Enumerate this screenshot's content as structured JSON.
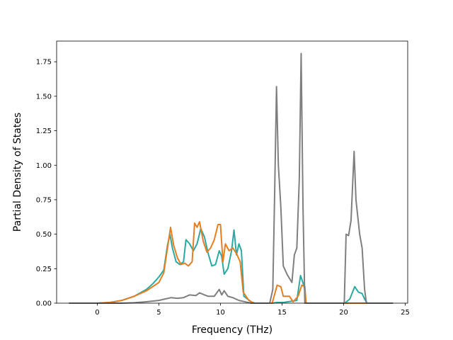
{
  "chart_data": {
    "type": "line",
    "title": "",
    "xlabel": "Frequency (THz)",
    "ylabel": "Partial Density of States",
    "xlim": [
      -3.3,
      25.2
    ],
    "ylim": [
      0,
      1.9
    ],
    "xticks": [
      0,
      5,
      10,
      15,
      20,
      25
    ],
    "xtick_labels": [
      "0",
      "5",
      "10",
      "15",
      "20",
      "25"
    ],
    "yticks": [
      0,
      0.25,
      0.5,
      0.75,
      1.0,
      1.25,
      1.5,
      1.75
    ],
    "ytick_labels": [
      "0.00",
      "0.25",
      "0.50",
      "0.75",
      "1.00",
      "1.25",
      "1.50",
      "1.75"
    ],
    "grid": false,
    "legend": "none",
    "series": [
      {
        "color": "#2ca9a0",
        "points": [
          [
            -2.3,
            0
          ],
          [
            0,
            0
          ],
          [
            1,
            0.005
          ],
          [
            2,
            0.02
          ],
          [
            3,
            0.05
          ],
          [
            4,
            0.1
          ],
          [
            4.5,
            0.14
          ],
          [
            5,
            0.19
          ],
          [
            5.4,
            0.24
          ],
          [
            5.7,
            0.42
          ],
          [
            5.9,
            0.5
          ],
          [
            6.1,
            0.4
          ],
          [
            6.4,
            0.3
          ],
          [
            6.7,
            0.28
          ],
          [
            7,
            0.3
          ],
          [
            7.2,
            0.46
          ],
          [
            7.5,
            0.43
          ],
          [
            7.8,
            0.38
          ],
          [
            8.1,
            0.43
          ],
          [
            8.4,
            0.54
          ],
          [
            8.7,
            0.48
          ],
          [
            9,
            0.36
          ],
          [
            9.3,
            0.27
          ],
          [
            9.6,
            0.28
          ],
          [
            9.9,
            0.38
          ],
          [
            10.1,
            0.34
          ],
          [
            10.3,
            0.21
          ],
          [
            10.6,
            0.25
          ],
          [
            10.9,
            0.38
          ],
          [
            11.1,
            0.53
          ],
          [
            11.3,
            0.35
          ],
          [
            11.5,
            0.43
          ],
          [
            11.7,
            0.38
          ],
          [
            11.9,
            0.05
          ],
          [
            12.5,
            0.01
          ],
          [
            12.8,
            0
          ],
          [
            14.2,
            0
          ],
          [
            14.6,
            0.005
          ],
          [
            15.1,
            0.005
          ],
          [
            16.2,
            0.02
          ],
          [
            16.5,
            0.2
          ],
          [
            16.8,
            0.12
          ],
          [
            16.95,
            0
          ],
          [
            20.1,
            0
          ],
          [
            20.5,
            0.03
          ],
          [
            20.9,
            0.12
          ],
          [
            21.2,
            0.08
          ],
          [
            21.5,
            0.07
          ],
          [
            21.7,
            0.03
          ],
          [
            21.9,
            0
          ],
          [
            24,
            0
          ]
        ]
      },
      {
        "color": "#e67e22",
        "points": [
          [
            -2.3,
            0
          ],
          [
            0,
            0
          ],
          [
            1,
            0.005
          ],
          [
            2,
            0.02
          ],
          [
            3,
            0.05
          ],
          [
            4,
            0.09
          ],
          [
            4.5,
            0.12
          ],
          [
            5,
            0.15
          ],
          [
            5.4,
            0.22
          ],
          [
            5.7,
            0.4
          ],
          [
            5.95,
            0.55
          ],
          [
            6.2,
            0.42
          ],
          [
            6.5,
            0.33
          ],
          [
            6.8,
            0.28
          ],
          [
            7.1,
            0.29
          ],
          [
            7.4,
            0.27
          ],
          [
            7.7,
            0.3
          ],
          [
            7.9,
            0.58
          ],
          [
            8.1,
            0.55
          ],
          [
            8.3,
            0.59
          ],
          [
            8.6,
            0.45
          ],
          [
            8.9,
            0.37
          ],
          [
            9.2,
            0.4
          ],
          [
            9.5,
            0.46
          ],
          [
            9.8,
            0.57
          ],
          [
            10,
            0.57
          ],
          [
            10.2,
            0.3
          ],
          [
            10.4,
            0.43
          ],
          [
            10.7,
            0.38
          ],
          [
            11,
            0.4
          ],
          [
            11.3,
            0.36
          ],
          [
            11.6,
            0.3
          ],
          [
            11.85,
            0.08
          ],
          [
            12.3,
            0.02
          ],
          [
            12.7,
            0
          ],
          [
            14.2,
            0
          ],
          [
            14.6,
            0.13
          ],
          [
            14.9,
            0.12
          ],
          [
            15.1,
            0.05
          ],
          [
            15.6,
            0.05
          ],
          [
            15.9,
            0.01
          ],
          [
            16.3,
            0.05
          ],
          [
            16.6,
            0.13
          ],
          [
            16.85,
            0.12
          ],
          [
            16.95,
            0
          ],
          [
            24,
            0
          ]
        ]
      },
      {
        "color": "#7f7f7f",
        "points": [
          [
            -2.3,
            0
          ],
          [
            2,
            0
          ],
          [
            3,
            0.003
          ],
          [
            4,
            0.01
          ],
          [
            5,
            0.02
          ],
          [
            5.5,
            0.03
          ],
          [
            6,
            0.04
          ],
          [
            6.5,
            0.035
          ],
          [
            7,
            0.04
          ],
          [
            7.5,
            0.06
          ],
          [
            8,
            0.055
          ],
          [
            8.3,
            0.075
          ],
          [
            8.7,
            0.06
          ],
          [
            9,
            0.05
          ],
          [
            9.5,
            0.05
          ],
          [
            9.9,
            0.1
          ],
          [
            10.1,
            0.06
          ],
          [
            10.3,
            0.09
          ],
          [
            10.6,
            0.05
          ],
          [
            11,
            0.04
          ],
          [
            11.5,
            0.02
          ],
          [
            12,
            0.01
          ],
          [
            12.5,
            0
          ],
          [
            14,
            0
          ],
          [
            14.25,
            0.1
          ],
          [
            14.4,
            0.8
          ],
          [
            14.55,
            1.57
          ],
          [
            14.7,
            1.0
          ],
          [
            14.9,
            0.7
          ],
          [
            15.1,
            0.27
          ],
          [
            15.4,
            0.21
          ],
          [
            15.8,
            0.15
          ],
          [
            16,
            0.35
          ],
          [
            16.2,
            0.4
          ],
          [
            16.4,
            0.9
          ],
          [
            16.55,
            1.81
          ],
          [
            16.7,
            0.7
          ],
          [
            16.85,
            0
          ],
          [
            20.05,
            0
          ],
          [
            20.2,
            0.5
          ],
          [
            20.4,
            0.49
          ],
          [
            20.6,
            0.6
          ],
          [
            20.85,
            1.1
          ],
          [
            21,
            0.75
          ],
          [
            21.3,
            0.5
          ],
          [
            21.5,
            0.4
          ],
          [
            21.7,
            0.1
          ],
          [
            21.85,
            0
          ],
          [
            24,
            0
          ]
        ]
      }
    ]
  }
}
